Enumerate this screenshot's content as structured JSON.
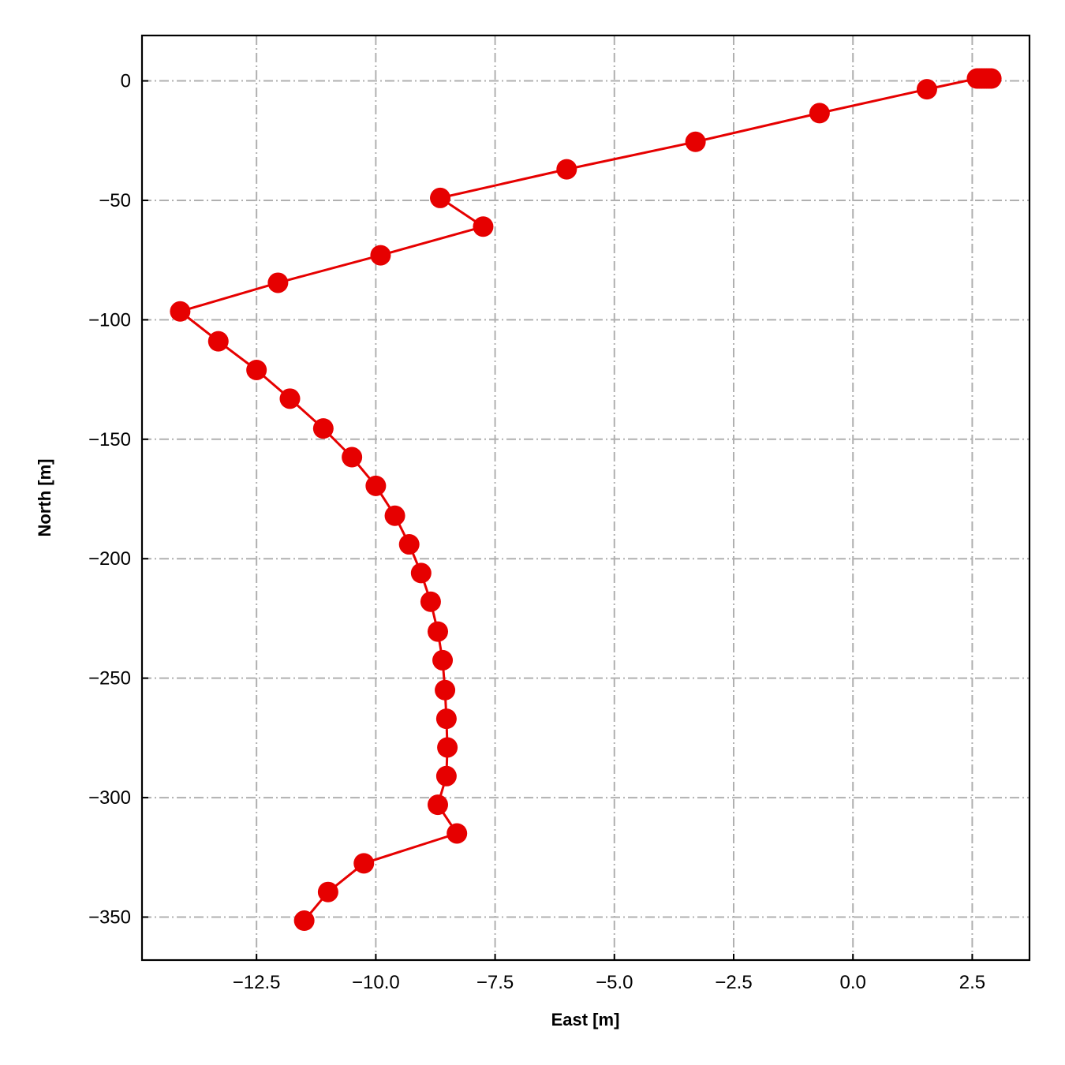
{
  "chart_data": {
    "type": "line",
    "title": "",
    "xlabel": "East [m]",
    "ylabel": "North [m]",
    "xlim": [
      -14.9,
      3.7
    ],
    "ylim": [
      -368,
      19
    ],
    "grid": true,
    "grid_style": "dash-dot",
    "xticks": [
      -12.5,
      -10.0,
      -7.5,
      -5.0,
      -2.5,
      0.0,
      2.5
    ],
    "xtick_labels": [
      "−12.5",
      "−10.0",
      "−7.5",
      "−5.0",
      "−2.5",
      "0.0",
      "2.5"
    ],
    "yticks": [
      0,
      -50,
      -100,
      -150,
      -200,
      -250,
      -300,
      -350
    ],
    "ytick_labels": [
      "0",
      "−50",
      "−100",
      "−150",
      "−200",
      "−250",
      "−300",
      "−350"
    ],
    "series": [
      {
        "color": "#e60000",
        "marker": "circle",
        "x": [
          2.9,
          2.85,
          2.8,
          2.75,
          2.7,
          2.65,
          2.6,
          1.55,
          -0.7,
          -3.3,
          -6.0,
          -8.65,
          -7.75,
          -9.9,
          -12.05,
          -14.1,
          -13.3,
          -12.5,
          -11.8,
          -11.1,
          -10.5,
          -10.0,
          -9.6,
          -9.3,
          -9.05,
          -8.85,
          -8.7,
          -8.6,
          -8.55,
          -8.52,
          -8.5,
          -8.52,
          -8.7,
          -8.3,
          -10.25,
          -11.0,
          -11.5
        ],
        "y": [
          1,
          1,
          1,
          1,
          1,
          1,
          1,
          -3.5,
          -13.5,
          -25.5,
          -37,
          -49,
          -61,
          -73,
          -84.5,
          -96.5,
          -109,
          -121,
          -133,
          -145.5,
          -157.5,
          -169.5,
          -182,
          -194,
          -206,
          -218,
          -230.5,
          -242.5,
          -255,
          -267,
          -279,
          -291,
          -303,
          -315,
          -327.5,
          -339.5,
          -351.5
        ]
      }
    ]
  }
}
